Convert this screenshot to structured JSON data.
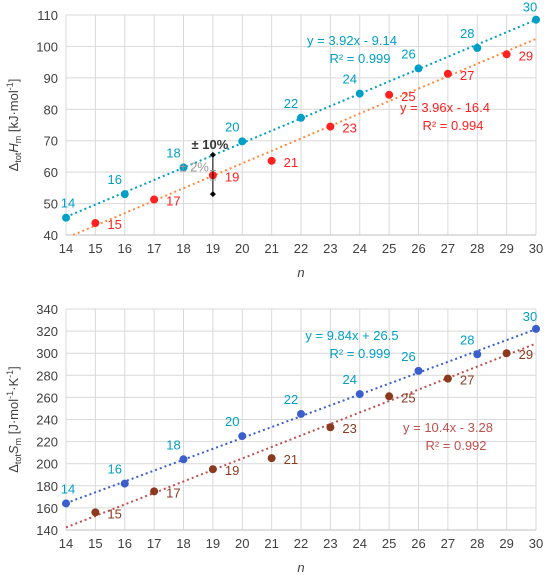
{
  "chart_data": [
    {
      "type": "scatter",
      "xlabel": "n",
      "ylabel": {
        "main": "Δ",
        "sub1": "tot",
        "italic": "H",
        "sub2": "m",
        "unit": " [kJ·mol",
        "sup": "-1",
        "close": "]"
      },
      "xlim": [
        14,
        30
      ],
      "ylim": [
        40,
        110
      ],
      "xticks": [
        "14",
        "15",
        "16",
        "17",
        "18",
        "19",
        "20",
        "21",
        "22",
        "23",
        "24",
        "25",
        "26",
        "27",
        "28",
        "29",
        "30"
      ],
      "yticks": [
        "40",
        "50",
        "60",
        "70",
        "80",
        "90",
        "100",
        "110"
      ],
      "grid": true,
      "series": [
        {
          "color": "#00a0c6",
          "x": [
            14,
            16,
            18,
            20,
            22,
            24,
            26,
            28,
            30
          ],
          "y": [
            45.5,
            53.0,
            61.5,
            69.8,
            77.3,
            85.0,
            93.0,
            99.5,
            108.5
          ],
          "labels": [
            "14",
            "16",
            "18",
            "20",
            "22",
            "24",
            "26",
            "28",
            "30"
          ],
          "trend": {
            "slope": 3.92,
            "intercept": -9.14
          },
          "equation": "y = 3.92x - 9.14",
          "r2": "R² = 0.999"
        },
        {
          "color": "#ff2020",
          "trend_color": "#ff8a3d",
          "x": [
            15,
            17,
            19,
            21,
            23,
            25,
            27,
            29
          ],
          "y": [
            43.8,
            51.3,
            59.0,
            63.6,
            74.5,
            84.6,
            91.3,
            97.5
          ],
          "labels": [
            "15",
            "17",
            "19",
            "21",
            "23",
            "25",
            "27",
            "29"
          ],
          "trend": {
            "slope": 3.96,
            "intercept": -16.4
          },
          "equation": "y = 3.96x - 16.4",
          "r2": "R² = 0.994"
        }
      ],
      "annotations": {
        "err10": "± 10%",
        "err2": "± 2%",
        "err_x": 19,
        "err10_range": [
          53.0,
          65.5
        ],
        "err2_range": [
          57.5,
          60.5
        ]
      }
    },
    {
      "type": "scatter",
      "xlabel": "n",
      "ylabel": {
        "main": "Δ",
        "sub1": "tot",
        "italic": "S",
        "sub2": "m",
        "unit": " [J·mol",
        "sup": "-1",
        "mid": "·K",
        "sup2": "-1",
        "close": "]"
      },
      "xlim": [
        14,
        30
      ],
      "ylim": [
        140,
        340
      ],
      "xticks": [
        "14",
        "15",
        "16",
        "17",
        "18",
        "19",
        "20",
        "21",
        "22",
        "23",
        "24",
        "25",
        "26",
        "27",
        "28",
        "29",
        "30"
      ],
      "yticks": [
        "140",
        "160",
        "180",
        "200",
        "220",
        "240",
        "260",
        "280",
        "300",
        "320",
        "340"
      ],
      "grid": true,
      "series": [
        {
          "color": "#3a5fcd",
          "label_color": "#00a0c6",
          "x": [
            14,
            16,
            18,
            20,
            22,
            24,
            26,
            28,
            30
          ],
          "y": [
            164,
            182,
            204,
            225,
            245,
            263,
            284,
            299,
            322
          ],
          "labels": [
            "14",
            "16",
            "18",
            "20",
            "22",
            "24",
            "26",
            "28",
            "30"
          ],
          "trend": {
            "slope": 9.84,
            "intercept": 26.5
          },
          "equation": "y = 9.84x + 26.5",
          "r2": "R² = 0.999"
        },
        {
          "color": "#8b3a1e",
          "label_color": "#8b3a1e",
          "trend_color": "#c0504d",
          "x": [
            15,
            17,
            19,
            21,
            23,
            25,
            27,
            29
          ],
          "y": [
            156,
            175,
            195,
            205,
            233,
            261,
            277,
            300
          ],
          "labels": [
            "15",
            "17",
            "19",
            "21",
            "23",
            "25",
            "27",
            "29"
          ],
          "trend": {
            "slope": 10.4,
            "intercept": -3.28
          },
          "equation": "y = 10.4x - 3.28",
          "r2": "R² = 0.992"
        }
      ]
    }
  ]
}
